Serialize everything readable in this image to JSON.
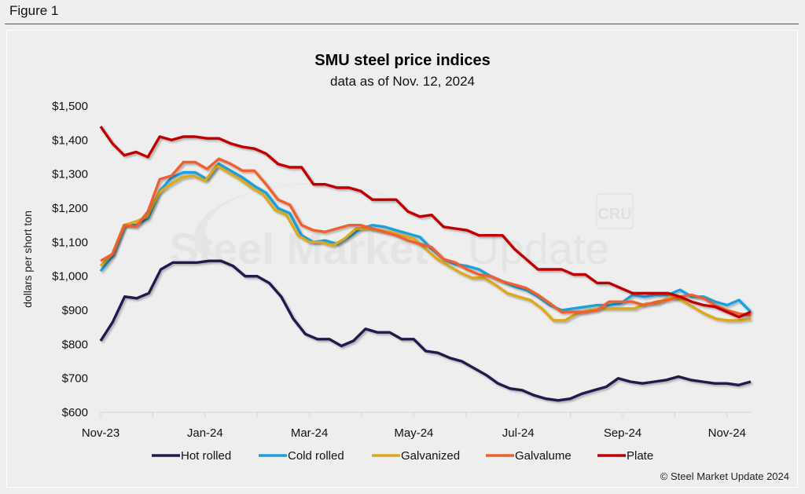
{
  "figure_label": "Figure 1",
  "chart_data": {
    "type": "line",
    "title": "SMU steel price indices",
    "subtitle": "data as of Nov. 12, 2024",
    "xlabel": "",
    "ylabel": "dollars per short ton",
    "ylim": [
      600,
      1500
    ],
    "yticks": [
      600,
      700,
      800,
      900,
      1000,
      1100,
      1200,
      1300,
      1400,
      1500
    ],
    "ytick_labels": [
      "$600",
      "$700",
      "$800",
      "$900",
      "$1,000",
      "$1,100",
      "$1,200",
      "$1,300",
      "$1,400",
      "$1,500"
    ],
    "xtick_labels": [
      "Nov-23",
      "Jan-24",
      "Mar-24",
      "May-24",
      "Jul-24",
      "Sep-24",
      "Nov-24"
    ],
    "x_range_months": [
      "2023-11",
      "2024-11"
    ],
    "grid": false,
    "legend_position": "bottom",
    "x_frequency": "weekly",
    "series": [
      {
        "name": "Hot rolled",
        "color": "#1e1a4d",
        "values": [
          810,
          865,
          940,
          935,
          950,
          1020,
          1040,
          1040,
          1040,
          1045,
          1045,
          1030,
          1000,
          1000,
          980,
          940,
          875,
          830,
          815,
          815,
          795,
          810,
          845,
          835,
          835,
          815,
          815,
          780,
          775,
          760,
          750,
          730,
          710,
          685,
          670,
          665,
          650,
          640,
          635,
          640,
          655,
          665,
          675,
          700,
          690,
          685,
          690,
          695,
          705,
          695,
          690,
          685,
          685,
          680,
          690
        ]
      },
      {
        "name": "Cold rolled",
        "color": "#1ea0dc",
        "values": [
          1015,
          1060,
          1150,
          1150,
          1170,
          1250,
          1290,
          1305,
          1305,
          1285,
          1330,
          1310,
          1290,
          1265,
          1245,
          1200,
          1185,
          1120,
          1100,
          1105,
          1095,
          1115,
          1140,
          1150,
          1145,
          1135,
          1125,
          1115,
          1080,
          1050,
          1035,
          1030,
          1020,
          1000,
          985,
          970,
          960,
          940,
          915,
          900,
          905,
          910,
          915,
          915,
          920,
          945,
          940,
          945,
          945,
          960,
          940,
          940,
          925,
          915,
          930,
          895
        ]
      },
      {
        "name": "Galvanized",
        "color": "#dca81e",
        "values": [
          1030,
          1065,
          1150,
          1160,
          1175,
          1245,
          1270,
          1290,
          1295,
          1280,
          1325,
          1305,
          1285,
          1260,
          1240,
          1195,
          1180,
          1120,
          1100,
          1100,
          1090,
          1110,
          1140,
          1140,
          1135,
          1130,
          1120,
          1110,
          1080,
          1050,
          1030,
          1010,
          995,
          995,
          975,
          950,
          940,
          930,
          905,
          870,
          870,
          890,
          900,
          905,
          905,
          905,
          905,
          920,
          920,
          940,
          930,
          910,
          890,
          875,
          870,
          870,
          875
        ]
      },
      {
        "name": "Galvalume",
        "color": "#f0602d",
        "values": [
          1045,
          1065,
          1150,
          1145,
          1190,
          1285,
          1295,
          1335,
          1335,
          1315,
          1345,
          1330,
          1310,
          1310,
          1270,
          1225,
          1210,
          1150,
          1135,
          1130,
          1140,
          1150,
          1150,
          1140,
          1130,
          1120,
          1105,
          1095,
          1085,
          1050,
          1040,
          1020,
          1005,
          1000,
          985,
          975,
          965,
          945,
          920,
          895,
          895,
          895,
          900,
          925,
          925,
          925,
          915,
          925,
          930,
          940,
          945,
          935,
          915,
          900,
          890,
          885
        ]
      },
      {
        "name": "Plate",
        "color": "#c00000",
        "values": [
          1440,
          1390,
          1355,
          1365,
          1350,
          1410,
          1400,
          1410,
          1410,
          1405,
          1405,
          1390,
          1380,
          1375,
          1360,
          1330,
          1320,
          1320,
          1270,
          1270,
          1260,
          1260,
          1250,
          1225,
          1225,
          1225,
          1190,
          1175,
          1180,
          1145,
          1140,
          1135,
          1120,
          1120,
          1120,
          1080,
          1050,
          1020,
          1020,
          1020,
          1005,
          1005,
          980,
          980,
          965,
          950,
          950,
          950,
          950,
          940,
          925,
          915,
          910,
          895,
          880,
          895
        ]
      }
    ]
  },
  "watermark": {
    "text": "Steel Market Update",
    "logo": "CRU"
  },
  "copyright": "© Steel Market Update 2024"
}
